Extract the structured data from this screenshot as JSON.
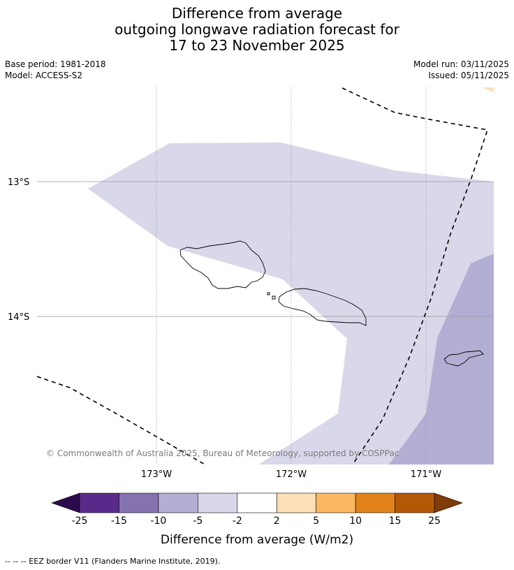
{
  "title": {
    "line1": "Difference from average",
    "line2": "outgoing longwave radiation forecast for",
    "line3": "17 to 23 November 2025"
  },
  "meta": {
    "base_period": "Base period: 1981-2018",
    "model": "Model: ACCESS-S2",
    "model_run": "Model run: 03/11/2025",
    "issued": "Issued: 05/11/2025"
  },
  "map": {
    "lat_labels": [
      "13°S",
      "14°S"
    ],
    "lon_labels": [
      "173°W",
      "172°W",
      "171°W"
    ],
    "copyright": "© Commonwealth of Australia 2025, Bureau of Meteorology, supported by COSPPac",
    "colors": {
      "light_lavender": "#d8d8ea",
      "medium_lavender": "#b2aed4",
      "light_orange": "#fddfb7"
    }
  },
  "colorbar": {
    "tick_labels": [
      "-25",
      "-15",
      "-10",
      "-5",
      "-2",
      "2",
      "5",
      "10",
      "15",
      "25"
    ],
    "colors": [
      "#2d0a4e",
      "#5a2a8a",
      "#8573b0",
      "#b2aed4",
      "#d8d8ea",
      "#ffffff",
      "#fddfb7",
      "#fbb762",
      "#e1821a",
      "#b35807",
      "#7f3b08"
    ],
    "label": "Difference from average (W/m2)"
  },
  "footnote": "--  --  -- EEZ border V11 (Flanders Marine Institute, 2019)."
}
